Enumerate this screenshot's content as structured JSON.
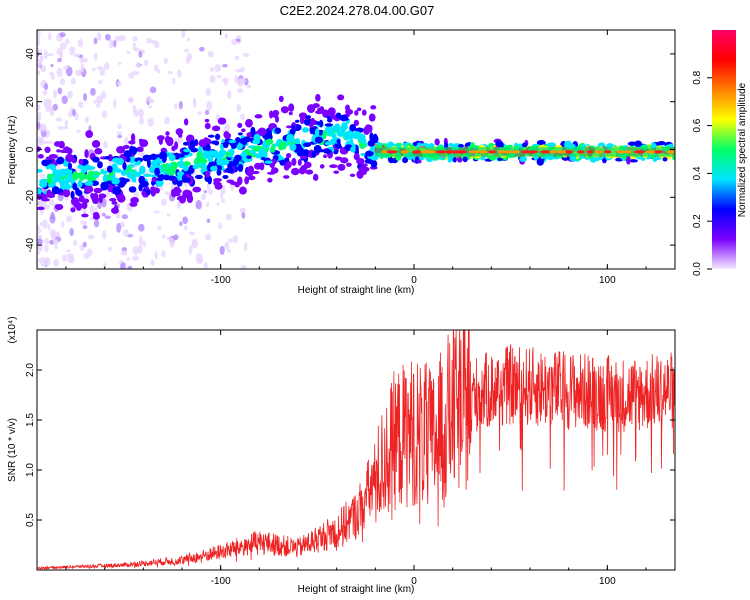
{
  "title": "C2E2.2024.278.04.00.G07",
  "chart_data": [
    {
      "type": "heatmap",
      "name": "frequency-spectrogram",
      "xlabel": "Height of straight line (km)",
      "ylabel": "Frequency (Hz)",
      "xlim": [
        -195,
        135
      ],
      "ylim": [
        -50,
        50
      ],
      "xticks": [
        -100,
        0,
        100
      ],
      "xtick_labels": [
        "-100",
        "0",
        "100"
      ],
      "yticks": [
        -40,
        -20,
        0,
        20,
        40
      ],
      "ytick_labels": [
        "-40",
        "-20",
        "0",
        "20",
        "40"
      ],
      "ridge": {
        "x": [
          -195,
          -160,
          -120,
          -80,
          -50,
          -35,
          -25,
          -10,
          0,
          50,
          100,
          135
        ],
        "y": [
          -12,
          -11,
          -6,
          0,
          5,
          7,
          1,
          -1,
          -1,
          -1,
          -1,
          -1
        ]
      },
      "colorbar": {
        "label": "Normalized spectral amplitude",
        "range": [
          0,
          1
        ],
        "ticks": [
          0.0,
          0.2,
          0.4,
          0.6,
          0.8
        ],
        "tick_labels": [
          "0.0",
          "0.2",
          "0.4",
          "0.6",
          "0.8"
        ],
        "colors": [
          "#f3e9ff",
          "#7b00ff",
          "#0000ff",
          "#00e5ff",
          "#00ff66",
          "#ffff00",
          "#ff8000",
          "#ff0000",
          "#ff0066"
        ]
      }
    },
    {
      "type": "line",
      "name": "snr-trace",
      "xlabel": "Height of straight line (km)",
      "ylabel": "SNR (10 * v/v)",
      "y_scale_label": "(x10⁴)",
      "xlim": [
        -195,
        135
      ],
      "ylim": [
        0,
        2.4
      ],
      "xticks": [
        -100,
        0,
        100
      ],
      "xtick_labels": [
        "-100",
        "0",
        "100"
      ],
      "yticks": [
        0.5,
        1.0,
        1.5,
        2.0
      ],
      "ytick_labels": [
        "0.5",
        "1.0",
        "1.5",
        "2.0"
      ],
      "color": "#ee2222",
      "envelope": {
        "x": [
          -195,
          -150,
          -120,
          -100,
          -80,
          -60,
          -40,
          -30,
          -20,
          -10,
          0,
          10,
          20,
          30,
          50,
          80,
          110,
          135
        ],
        "y": [
          0.02,
          0.05,
          0.1,
          0.18,
          0.28,
          0.22,
          0.4,
          0.55,
          0.9,
          1.3,
          1.4,
          1.3,
          1.6,
          1.75,
          1.85,
          1.8,
          1.75,
          1.8
        ]
      }
    }
  ]
}
